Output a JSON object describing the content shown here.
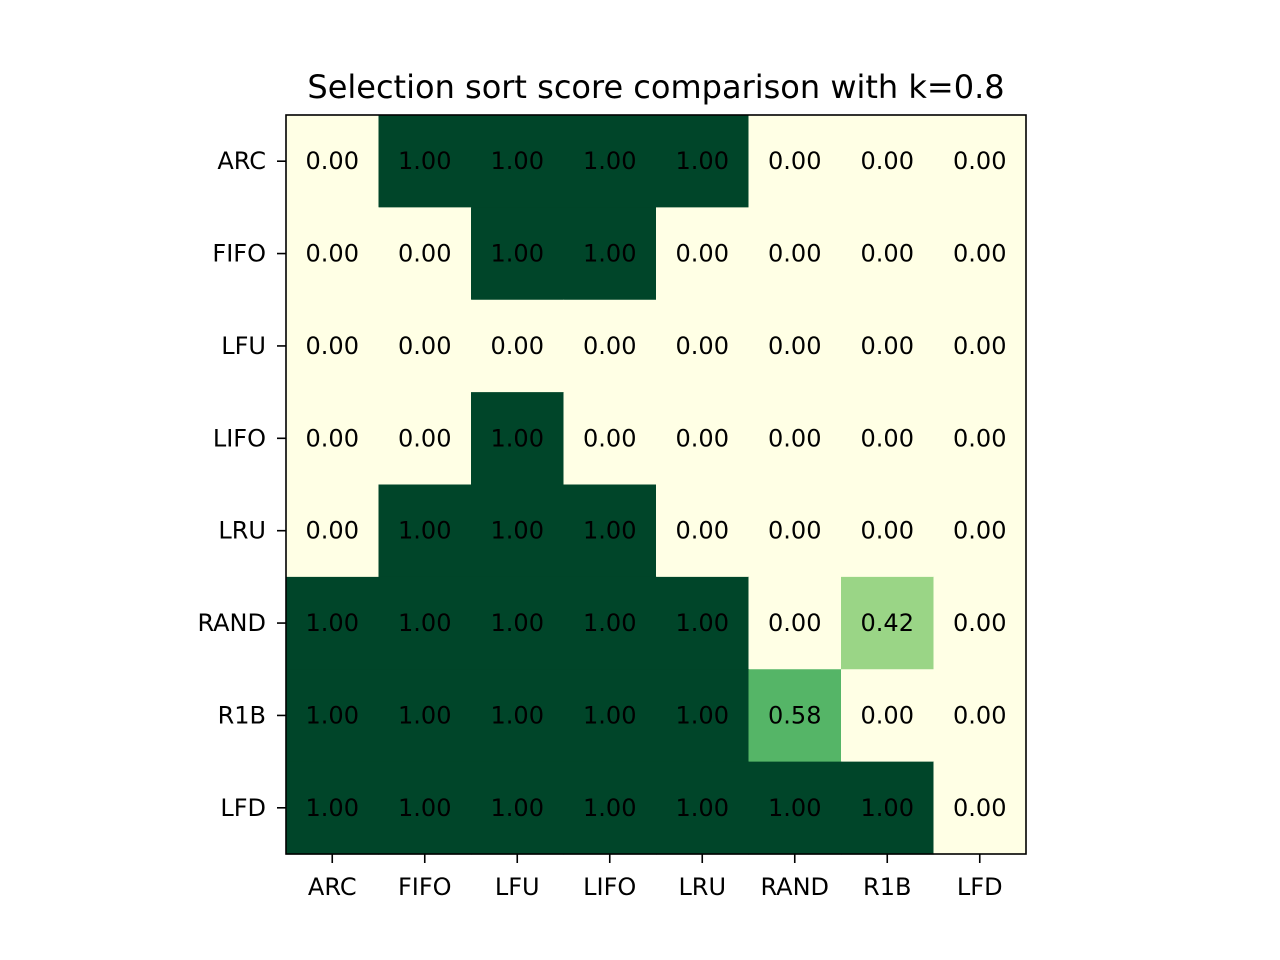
{
  "chart_data": {
    "type": "heatmap",
    "title": "Selection sort score comparison with k=0.8",
    "xlabel": "",
    "ylabel": "",
    "row_labels": [
      "ARC",
      "FIFO",
      "LFU",
      "LIFO",
      "LRU",
      "RAND",
      "R1B",
      "LFD"
    ],
    "col_labels": [
      "ARC",
      "FIFO",
      "LFU",
      "LIFO",
      "LRU",
      "RAND",
      "R1B",
      "LFD"
    ],
    "values": [
      [
        0.0,
        1.0,
        1.0,
        1.0,
        1.0,
        0.0,
        0.0,
        0.0
      ],
      [
        0.0,
        0.0,
        1.0,
        1.0,
        0.0,
        0.0,
        0.0,
        0.0
      ],
      [
        0.0,
        0.0,
        0.0,
        0.0,
        0.0,
        0.0,
        0.0,
        0.0
      ],
      [
        0.0,
        0.0,
        1.0,
        0.0,
        0.0,
        0.0,
        0.0,
        0.0
      ],
      [
        0.0,
        1.0,
        1.0,
        1.0,
        0.0,
        0.0,
        0.0,
        0.0
      ],
      [
        1.0,
        1.0,
        1.0,
        1.0,
        1.0,
        0.0,
        0.42,
        0.0
      ],
      [
        1.0,
        1.0,
        1.0,
        1.0,
        1.0,
        0.58,
        0.0,
        0.0
      ],
      [
        1.0,
        1.0,
        1.0,
        1.0,
        1.0,
        1.0,
        1.0,
        0.0
      ]
    ],
    "value_range": [
      0,
      1
    ],
    "colormap": "YlGn",
    "colors": {
      "low": "#ffffe5",
      "high": "#004529"
    },
    "grid": false,
    "legend": "none"
  }
}
